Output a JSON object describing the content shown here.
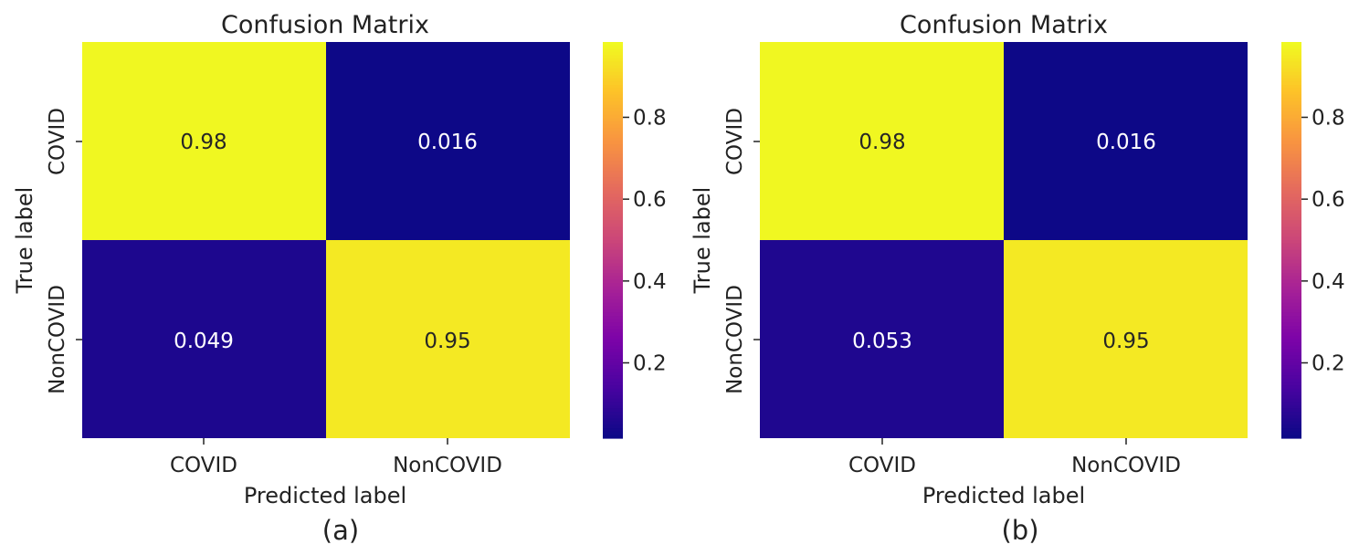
{
  "chart_data": [
    {
      "type": "heatmap",
      "title": "Confusion Matrix",
      "xlabel": "Predicted label",
      "ylabel": "True label",
      "x_categories": [
        "COVID",
        "NonCOVID"
      ],
      "y_categories": [
        "COVID",
        "NonCOVID"
      ],
      "values": [
        [
          0.98,
          0.016
        ],
        [
          0.049,
          0.95
        ]
      ],
      "annotations": [
        [
          "0.98",
          "0.016"
        ],
        [
          "0.049",
          "0.95"
        ]
      ],
      "colormap": "plasma",
      "colorbar": {
        "range": [
          0.016,
          0.984
        ],
        "ticks": [
          "0.8",
          "0.6",
          "0.4",
          "0.2"
        ]
      },
      "panel_label": "(a)"
    },
    {
      "type": "heatmap",
      "title": "Confusion Matrix",
      "xlabel": "Predicted label",
      "ylabel": "True label",
      "x_categories": [
        "COVID",
        "NonCOVID"
      ],
      "y_categories": [
        "COVID",
        "NonCOVID"
      ],
      "values": [
        [
          0.98,
          0.016
        ],
        [
          0.053,
          0.95
        ]
      ],
      "annotations": [
        [
          "0.98",
          "0.016"
        ],
        [
          "0.053",
          "0.95"
        ]
      ],
      "colormap": "plasma",
      "colorbar": {
        "range": [
          0.016,
          0.984
        ],
        "ticks": [
          "0.8",
          "0.6",
          "0.4",
          "0.2"
        ]
      },
      "panel_label": "(b)"
    }
  ]
}
